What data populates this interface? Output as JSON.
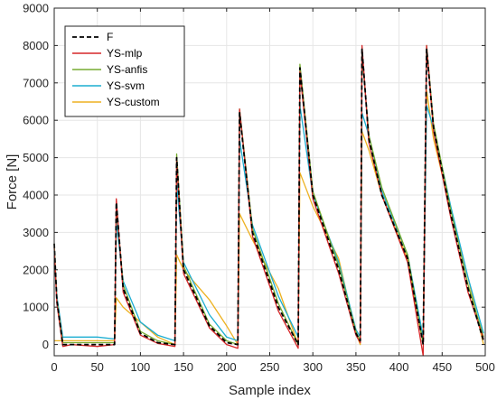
{
  "chart_data": {
    "type": "line",
    "title": "",
    "xlabel": "Sample index",
    "ylabel": "Force [N]",
    "xlim": [
      0,
      500
    ],
    "ylim": [
      -300,
      9000
    ],
    "xticks": [
      0,
      50,
      100,
      150,
      200,
      250,
      300,
      350,
      400,
      450,
      500
    ],
    "yticks": [
      0,
      1000,
      2000,
      3000,
      4000,
      5000,
      6000,
      7000,
      8000,
      9000
    ],
    "grid": true,
    "legend_position": "top-left",
    "series": [
      {
        "name": "F",
        "color": "#000000",
        "dash": true,
        "x": [
          0,
          3,
          10,
          20,
          50,
          70,
          72,
          80,
          100,
          120,
          140,
          142,
          150,
          180,
          200,
          213,
          215,
          230,
          260,
          283,
          285,
          300,
          330,
          350,
          355,
          357,
          365,
          380,
          410,
          428,
          432,
          440,
          460,
          480,
          498
        ],
        "y": [
          2700,
          1200,
          0,
          0,
          0,
          0,
          3800,
          1500,
          300,
          50,
          0,
          5000,
          2000,
          500,
          50,
          0,
          6200,
          3000,
          1000,
          0,
          7400,
          4000,
          2000,
          300,
          100,
          7900,
          5500,
          4000,
          2300,
          0,
          7900,
          5800,
          3500,
          1500,
          100
        ]
      },
      {
        "name": "YS-mlp",
        "color": "#d62728",
        "dash": false,
        "x": [
          0,
          3,
          10,
          20,
          50,
          70,
          72,
          80,
          100,
          120,
          140,
          142,
          150,
          180,
          200,
          213,
          215,
          230,
          260,
          283,
          285,
          300,
          330,
          350,
          355,
          357,
          365,
          380,
          410,
          428,
          432,
          440,
          460,
          480,
          498
        ],
        "y": [
          2600,
          1100,
          -50,
          0,
          -50,
          0,
          3900,
          1400,
          250,
          30,
          -50,
          4900,
          1900,
          450,
          0,
          -100,
          6300,
          2900,
          900,
          -100,
          7300,
          3900,
          1900,
          250,
          50,
          8000,
          5400,
          4000,
          2200,
          -300,
          8000,
          5700,
          3400,
          1400,
          150
        ]
      },
      {
        "name": "YS-anfis",
        "color": "#77ac30",
        "dash": false,
        "x": [
          0,
          3,
          10,
          20,
          50,
          70,
          72,
          80,
          100,
          120,
          140,
          142,
          150,
          180,
          200,
          213,
          215,
          230,
          260,
          283,
          285,
          300,
          330,
          350,
          355,
          357,
          365,
          380,
          410,
          428,
          432,
          440,
          460,
          480,
          498
        ],
        "y": [
          2700,
          1200,
          50,
          50,
          50,
          50,
          3700,
          1600,
          350,
          100,
          0,
          5100,
          2100,
          550,
          100,
          0,
          6300,
          3100,
          1100,
          0,
          7500,
          4100,
          2100,
          350,
          100,
          7800,
          5600,
          4200,
          2400,
          0,
          8000,
          5900,
          3600,
          1600,
          200
        ]
      },
      {
        "name": "YS-svm",
        "color": "#1cadd1",
        "dash": false,
        "x": [
          0,
          3,
          10,
          20,
          50,
          70,
          72,
          80,
          100,
          120,
          140,
          142,
          150,
          180,
          200,
          213,
          215,
          230,
          260,
          283,
          285,
          300,
          330,
          350,
          355,
          357,
          365,
          380,
          410,
          428,
          432,
          440,
          460,
          480,
          498
        ],
        "y": [
          2500,
          1300,
          200,
          200,
          200,
          150,
          3300,
          1700,
          600,
          250,
          100,
          4300,
          2200,
          800,
          200,
          100,
          5500,
          3200,
          1300,
          200,
          6400,
          4000,
          2200,
          400,
          200,
          6200,
          5600,
          4100,
          2400,
          200,
          6400,
          5800,
          3700,
          1800,
          300
        ]
      },
      {
        "name": "YS-custom",
        "color": "#edb120",
        "dash": false,
        "x": [
          0,
          3,
          10,
          20,
          50,
          70,
          72,
          80,
          100,
          120,
          140,
          142,
          150,
          180,
          200,
          213,
          215,
          230,
          260,
          283,
          285,
          300,
          330,
          350,
          355,
          357,
          365,
          380,
          410,
          428,
          432,
          440,
          460,
          480,
          498
        ],
        "y": [
          100,
          100,
          100,
          100,
          100,
          100,
          1250,
          1000,
          600,
          200,
          0,
          2400,
          2000,
          1200,
          500,
          0,
          3500,
          2800,
          1500,
          0,
          4600,
          3700,
          2300,
          300,
          0,
          5700,
          5200,
          4000,
          2300,
          0,
          6800,
          5500,
          3600,
          1800,
          0
        ]
      }
    ]
  }
}
